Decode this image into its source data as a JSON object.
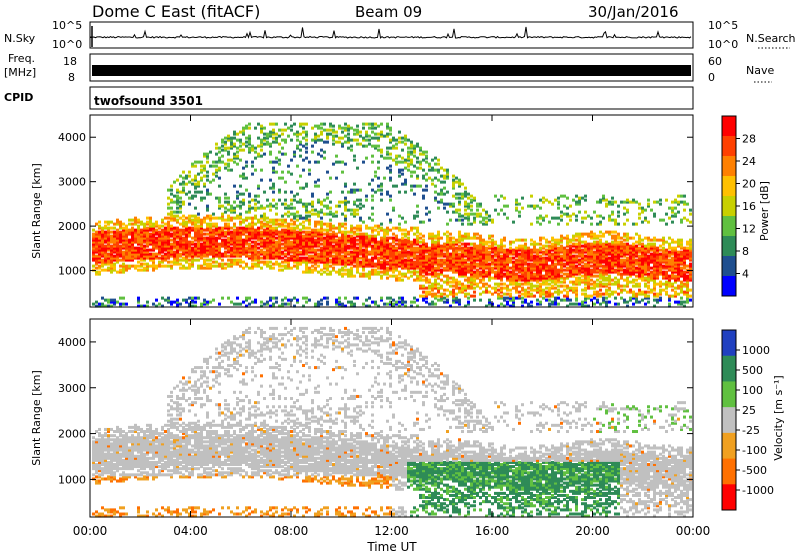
{
  "header": {
    "station": "Dome C East (fitACF)",
    "beam": "Beam 09",
    "date": "30/Jan/2016"
  },
  "aux_panels": {
    "nsky_label": "N.Sky",
    "nsky_ticks": [
      "10^5",
      "10^0"
    ],
    "nsearch_label": "N.Search",
    "nsearch_ticks": [
      "10^5",
      "10^0"
    ],
    "freq_label": "Freq.",
    "freq_unit": "[MHz]",
    "freq_ticks": [
      "18",
      "8"
    ],
    "nave_label": "Nave",
    "nave_ticks": [
      "60",
      "0"
    ],
    "cpid_label": "CPID",
    "cpid_value": "twofsound 3501"
  },
  "x_axis": {
    "label": "Time UT",
    "ticks": [
      "00:00",
      "04:00",
      "08:00",
      "12:00",
      "16:00",
      "20:00",
      "00:00"
    ]
  },
  "panels": {
    "power": {
      "ylabel": "Slant Range [km]",
      "yticks": [
        "1000",
        "2000",
        "3000",
        "4000"
      ],
      "colorbar_label": "Power [dB]",
      "colorbar_ticks": [
        "28",
        "24",
        "20",
        "16",
        "12",
        "8",
        "4"
      ],
      "colors": [
        "#ff0000",
        "#ff4000",
        "#ff8000",
        "#ffc000",
        "#c8d000",
        "#60c040",
        "#2e8b57",
        "#1f4f8f",
        "#0000ff"
      ]
    },
    "velocity": {
      "ylabel": "Slant Range [km]",
      "yticks": [
        "1000",
        "2000",
        "3000",
        "4000"
      ],
      "colorbar_label": "Velocity [m s⁻¹]",
      "colorbar_ticks": [
        "1000",
        "500",
        "100",
        "25",
        "-25",
        "-100",
        "-500",
        "-1000"
      ],
      "colors": [
        "#2040c0",
        "#2e8b57",
        "#60c040",
        "#c0c0c0",
        "#f0a020",
        "#ff7000",
        "#ff0000"
      ]
    }
  },
  "chart_data": [
    {
      "type": "heatmap",
      "title": "Power [dB]",
      "xlabel": "Time UT",
      "ylabel": "Slant Range [km]",
      "x_range": [
        "00:00",
        "24:00"
      ],
      "ylim": [
        180,
        4500
      ],
      "colorbar_range": [
        0,
        32
      ],
      "description_values": {
        "main_band_range_km": [
          1200,
          1900
        ],
        "main_band_power_db": 26
      }
    },
    {
      "type": "heatmap",
      "title": "Velocity [m s⁻¹]",
      "xlabel": "Time UT",
      "ylabel": "Slant Range [km]",
      "x_range": [
        "00:00",
        "24:00"
      ],
      "ylim": [
        180,
        4500
      ],
      "colorbar_range": [
        -1000,
        1000
      ]
    }
  ]
}
